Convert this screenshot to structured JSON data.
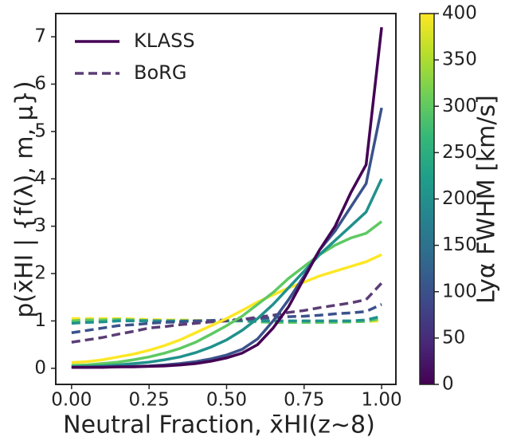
{
  "chart_data": {
    "type": "line",
    "xlabel": "Neutral Fraction, x̄HI(z∼8)",
    "ylabel": "p(x̄HI | {f(λ), m, μ})",
    "x": [
      0,
      0.05,
      0.1,
      0.15,
      0.2,
      0.25,
      0.3,
      0.35,
      0.4,
      0.45,
      0.5,
      0.55,
      0.6,
      0.65,
      0.7,
      0.75,
      0.8,
      0.85,
      0.9,
      0.95,
      1.0
    ],
    "xlim": [
      -0.051,
      1.046
    ],
    "xticks": [
      {
        "value": 0,
        "label": "0.00"
      },
      {
        "value": 0.25,
        "label": "0.25"
      },
      {
        "value": 0.5,
        "label": "0.50"
      },
      {
        "value": 0.75,
        "label": "0.75"
      },
      {
        "value": 1,
        "label": "1.00"
      }
    ],
    "ylim": [
      -0.34,
      7.49
    ],
    "yticks": [
      0,
      1,
      2,
      3,
      4,
      5,
      6,
      7
    ],
    "legend_position": "upper left",
    "legend": [
      {
        "name": "KLASS",
        "color": "#440154",
        "dashed": false
      },
      {
        "name": "BoRG",
        "color": "#5b3d75",
        "dashed": true
      }
    ],
    "series": [
      {
        "color": "#fde725",
        "dashed": true,
        "values": [
          1.05,
          1.05,
          1.05,
          1.05,
          1.04,
          1.03,
          1.02,
          1.02,
          1.01,
          1.01,
          1.0,
          1.0,
          1.0,
          1.0,
          0.99,
          0.99,
          0.99,
          0.99,
          0.99,
          0.99,
          1.0
        ]
      },
      {
        "color": "#5ec962",
        "dashed": true,
        "values": [
          1.0,
          1.02,
          1.02,
          1.03,
          1.02,
          1.01,
          1.0,
          1.0,
          1.0,
          1.0,
          1.0,
          1.0,
          0.98,
          0.97,
          0.97,
          0.97,
          0.97,
          0.97,
          0.98,
          0.99,
          1.05
        ]
      },
      {
        "color": "#21918c",
        "dashed": true,
        "values": [
          0.95,
          0.97,
          0.98,
          1.0,
          1.0,
          1.0,
          1.0,
          1.0,
          1.0,
          1.0,
          1.0,
          1.0,
          1.0,
          1.0,
          1.0,
          1.0,
          1.0,
          1.0,
          1.0,
          1.02,
          1.1
        ]
      },
      {
        "color": "#3b528b",
        "dashed": true,
        "values": [
          0.75,
          0.8,
          0.85,
          0.9,
          0.92,
          0.95,
          0.97,
          0.98,
          1.0,
          1.01,
          1.02,
          1.03,
          1.05,
          1.07,
          1.09,
          1.1,
          1.12,
          1.15,
          1.17,
          1.2,
          1.35
        ]
      },
      {
        "color": "#5b3d75",
        "dashed": true,
        "values": [
          0.55,
          0.6,
          0.65,
          0.72,
          0.78,
          0.85,
          0.88,
          0.92,
          0.95,
          0.98,
          1.0,
          1.03,
          1.08,
          1.12,
          1.18,
          1.22,
          1.28,
          1.33,
          1.38,
          1.45,
          1.8
        ]
      },
      {
        "color": "#fde725",
        "dashed": false,
        "values": [
          0.12,
          0.14,
          0.18,
          0.24,
          0.3,
          0.38,
          0.48,
          0.6,
          0.75,
          0.9,
          1.05,
          1.22,
          1.4,
          1.55,
          1.7,
          1.82,
          1.95,
          2.05,
          2.15,
          2.25,
          2.4
        ]
      },
      {
        "color": "#5ec962",
        "dashed": false,
        "values": [
          0.06,
          0.07,
          0.1,
          0.13,
          0.18,
          0.24,
          0.32,
          0.42,
          0.55,
          0.72,
          0.9,
          1.1,
          1.35,
          1.6,
          1.9,
          2.15,
          2.4,
          2.6,
          2.75,
          2.85,
          3.1
        ]
      },
      {
        "color": "#21918c",
        "dashed": false,
        "values": [
          0.03,
          0.04,
          0.05,
          0.07,
          0.1,
          0.13,
          0.18,
          0.24,
          0.33,
          0.45,
          0.6,
          0.8,
          1.05,
          1.35,
          1.7,
          2.05,
          2.4,
          2.7,
          3.0,
          3.3,
          4.0
        ]
      },
      {
        "color": "#3b528b",
        "dashed": false,
        "values": [
          0.02,
          0.02,
          0.03,
          0.03,
          0.04,
          0.05,
          0.07,
          0.1,
          0.14,
          0.2,
          0.28,
          0.4,
          0.62,
          1.0,
          1.45,
          1.95,
          2.5,
          2.9,
          3.4,
          3.9,
          5.5
        ]
      },
      {
        "color": "#440154",
        "dashed": false,
        "values": [
          0.02,
          0.02,
          0.02,
          0.03,
          0.03,
          0.04,
          0.05,
          0.07,
          0.1,
          0.15,
          0.22,
          0.32,
          0.5,
          0.85,
          1.3,
          1.9,
          2.5,
          3.0,
          3.7,
          4.3,
          7.2
        ]
      }
    ],
    "colorbar": {
      "label": "Lyα FWHM [km/s]",
      "lim": [
        0,
        400
      ],
      "ticks": [
        0,
        50,
        100,
        150,
        200,
        250,
        300,
        350,
        400
      ],
      "colors": [
        "#440154",
        "#482878",
        "#3e4989",
        "#31688e",
        "#26828e",
        "#1f9e89",
        "#35b779",
        "#6ece58",
        "#b5de2b",
        "#fde725"
      ]
    }
  }
}
